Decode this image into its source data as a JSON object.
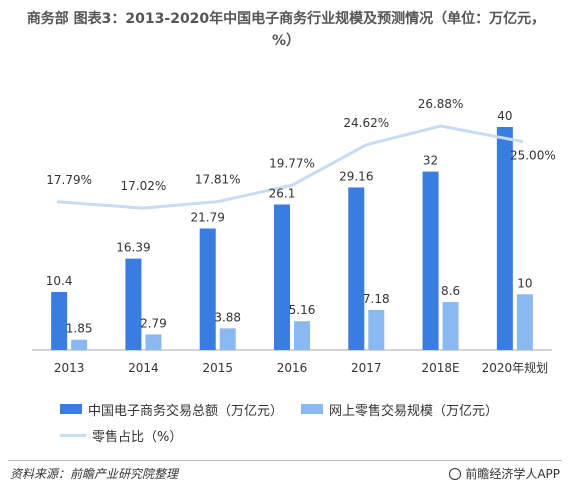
{
  "title": "商务部 图表3：2013-2020年中国电子商务行业规模及预测情况（单位：万亿元，%）",
  "chart_data": {
    "type": "bar",
    "categories": [
      "2013",
      "2014",
      "2015",
      "2016",
      "2017",
      "2018E",
      "2020年规划"
    ],
    "series": [
      {
        "name": "中国电子商务交易总额（万亿元）",
        "type": "bar",
        "color": "#3a7de0",
        "values": [
          10.4,
          16.39,
          21.79,
          26.1,
          29.16,
          32,
          40
        ],
        "labels": [
          "10.4",
          "16.39",
          "21.79",
          "26.1",
          "29.16",
          "32",
          "40"
        ]
      },
      {
        "name": "网上零售交易规模（万亿元）",
        "type": "bar",
        "color": "#8ab8f0",
        "values": [
          1.85,
          2.79,
          3.88,
          5.16,
          7.18,
          8.6,
          10
        ],
        "labels": [
          "1.85",
          "2.79",
          "3.88",
          "5.16",
          "7.18",
          "8.6",
          "10"
        ]
      },
      {
        "name": "零售占比（%）",
        "type": "line",
        "color": "#c5dcf3",
        "values": [
          17.79,
          17.02,
          17.81,
          19.77,
          24.62,
          26.88,
          25.0
        ],
        "labels": [
          "17.79%",
          "17.02%",
          "17.81%",
          "19.77%",
          "24.62%",
          "26.88%",
          "25.00%"
        ]
      }
    ],
    "bar_ylim": [
      0,
      40
    ],
    "line_ylim": [
      0,
      26.88
    ],
    "legend_position": "bottom"
  },
  "footer": {
    "source": "资料来源：前瞻产业研究院整理",
    "brand": "前瞻经济学人APP"
  }
}
